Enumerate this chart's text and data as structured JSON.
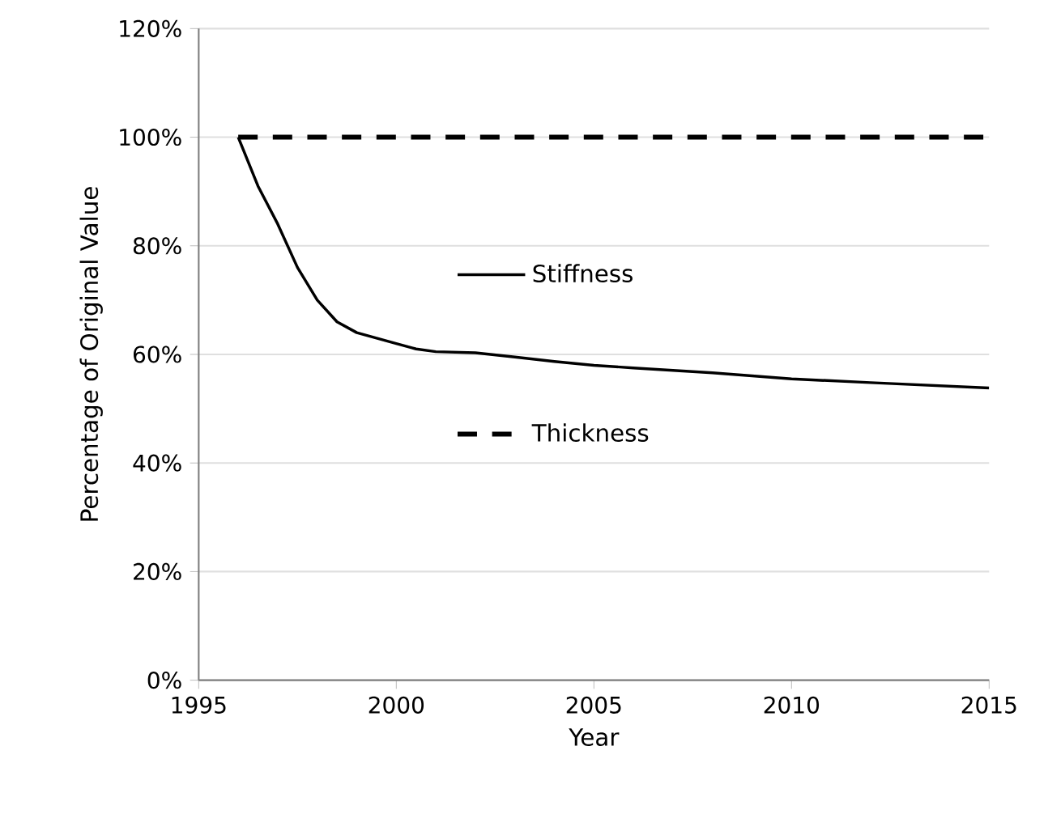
{
  "chart_data": {
    "type": "line",
    "xlabel": "Year",
    "ylabel": "Percentage of Original Value",
    "xlim": [
      1995,
      2015
    ],
    "xticks": [
      1995,
      2000,
      2005,
      2010,
      2015
    ],
    "ylim": [
      0,
      120
    ],
    "yticks": [
      {
        "value": 0,
        "label": "0%"
      },
      {
        "value": 20,
        "label": "20%"
      },
      {
        "value": 40,
        "label": "40%"
      },
      {
        "value": 60,
        "label": "60%"
      },
      {
        "value": 80,
        "label": "80%"
      },
      {
        "value": 100,
        "label": "100%"
      },
      {
        "value": 120,
        "label": "120%"
      }
    ],
    "grid": "y",
    "legend": "center",
    "marker": "none",
    "series": [
      {
        "name": "Stiffness",
        "color": "#000000",
        "line_style": "solid",
        "x": [
          1996,
          1996.5,
          1997,
          1997.5,
          1998,
          1998.5,
          1999,
          2000,
          2000.5,
          2001,
          2002,
          2003,
          2004,
          2005,
          2006,
          2008,
          2010,
          2012,
          2015
        ],
        "values": [
          100,
          91,
          84,
          76,
          70,
          66,
          64,
          62,
          61,
          60.5,
          60.3,
          59.5,
          58.7,
          58,
          57.5,
          56.6,
          55.5,
          54.8,
          53.8
        ]
      },
      {
        "name": "Thickness",
        "color": "#000000",
        "line_style": "dashed",
        "x": [
          1996,
          2015
        ],
        "values": [
          100,
          100
        ]
      }
    ]
  }
}
